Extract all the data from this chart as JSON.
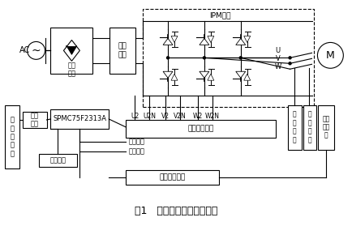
{
  "title": "图1   变频调速系统结构框图",
  "title_fontsize": 9,
  "bg_color": "#ffffff",
  "line_color": "#000000",
  "ipm_label": "IPM模块",
  "ac_label": "AC",
  "rect_label": "整流\n电路",
  "filter_label": "滤波\n电路",
  "mcu_label": "SPMC75F2313A",
  "opto_label": "光耦隔离电路",
  "upper_label": "上\n位\n机\n控\n制",
  "serial_label": "串口\n通信",
  "display_label": "数码显示",
  "pulse_label": "脉冲整形电路",
  "current_label": "电流检测",
  "voltage_label": "电压检测",
  "motor_label": "M",
  "encoder_label": "编码\n器测\n速",
  "hall1_label": "霍\n尔\n元\n件",
  "hall2_label": "霍\n尔\n元\n件",
  "u2_label": "U2",
  "u2n_label": "U2N",
  "v2_label": "V2",
  "v2n_label": "V2N",
  "w2_label": "W2",
  "w2n_label": "W2N",
  "u_label": "U",
  "v_label": "V",
  "w_label": "W"
}
